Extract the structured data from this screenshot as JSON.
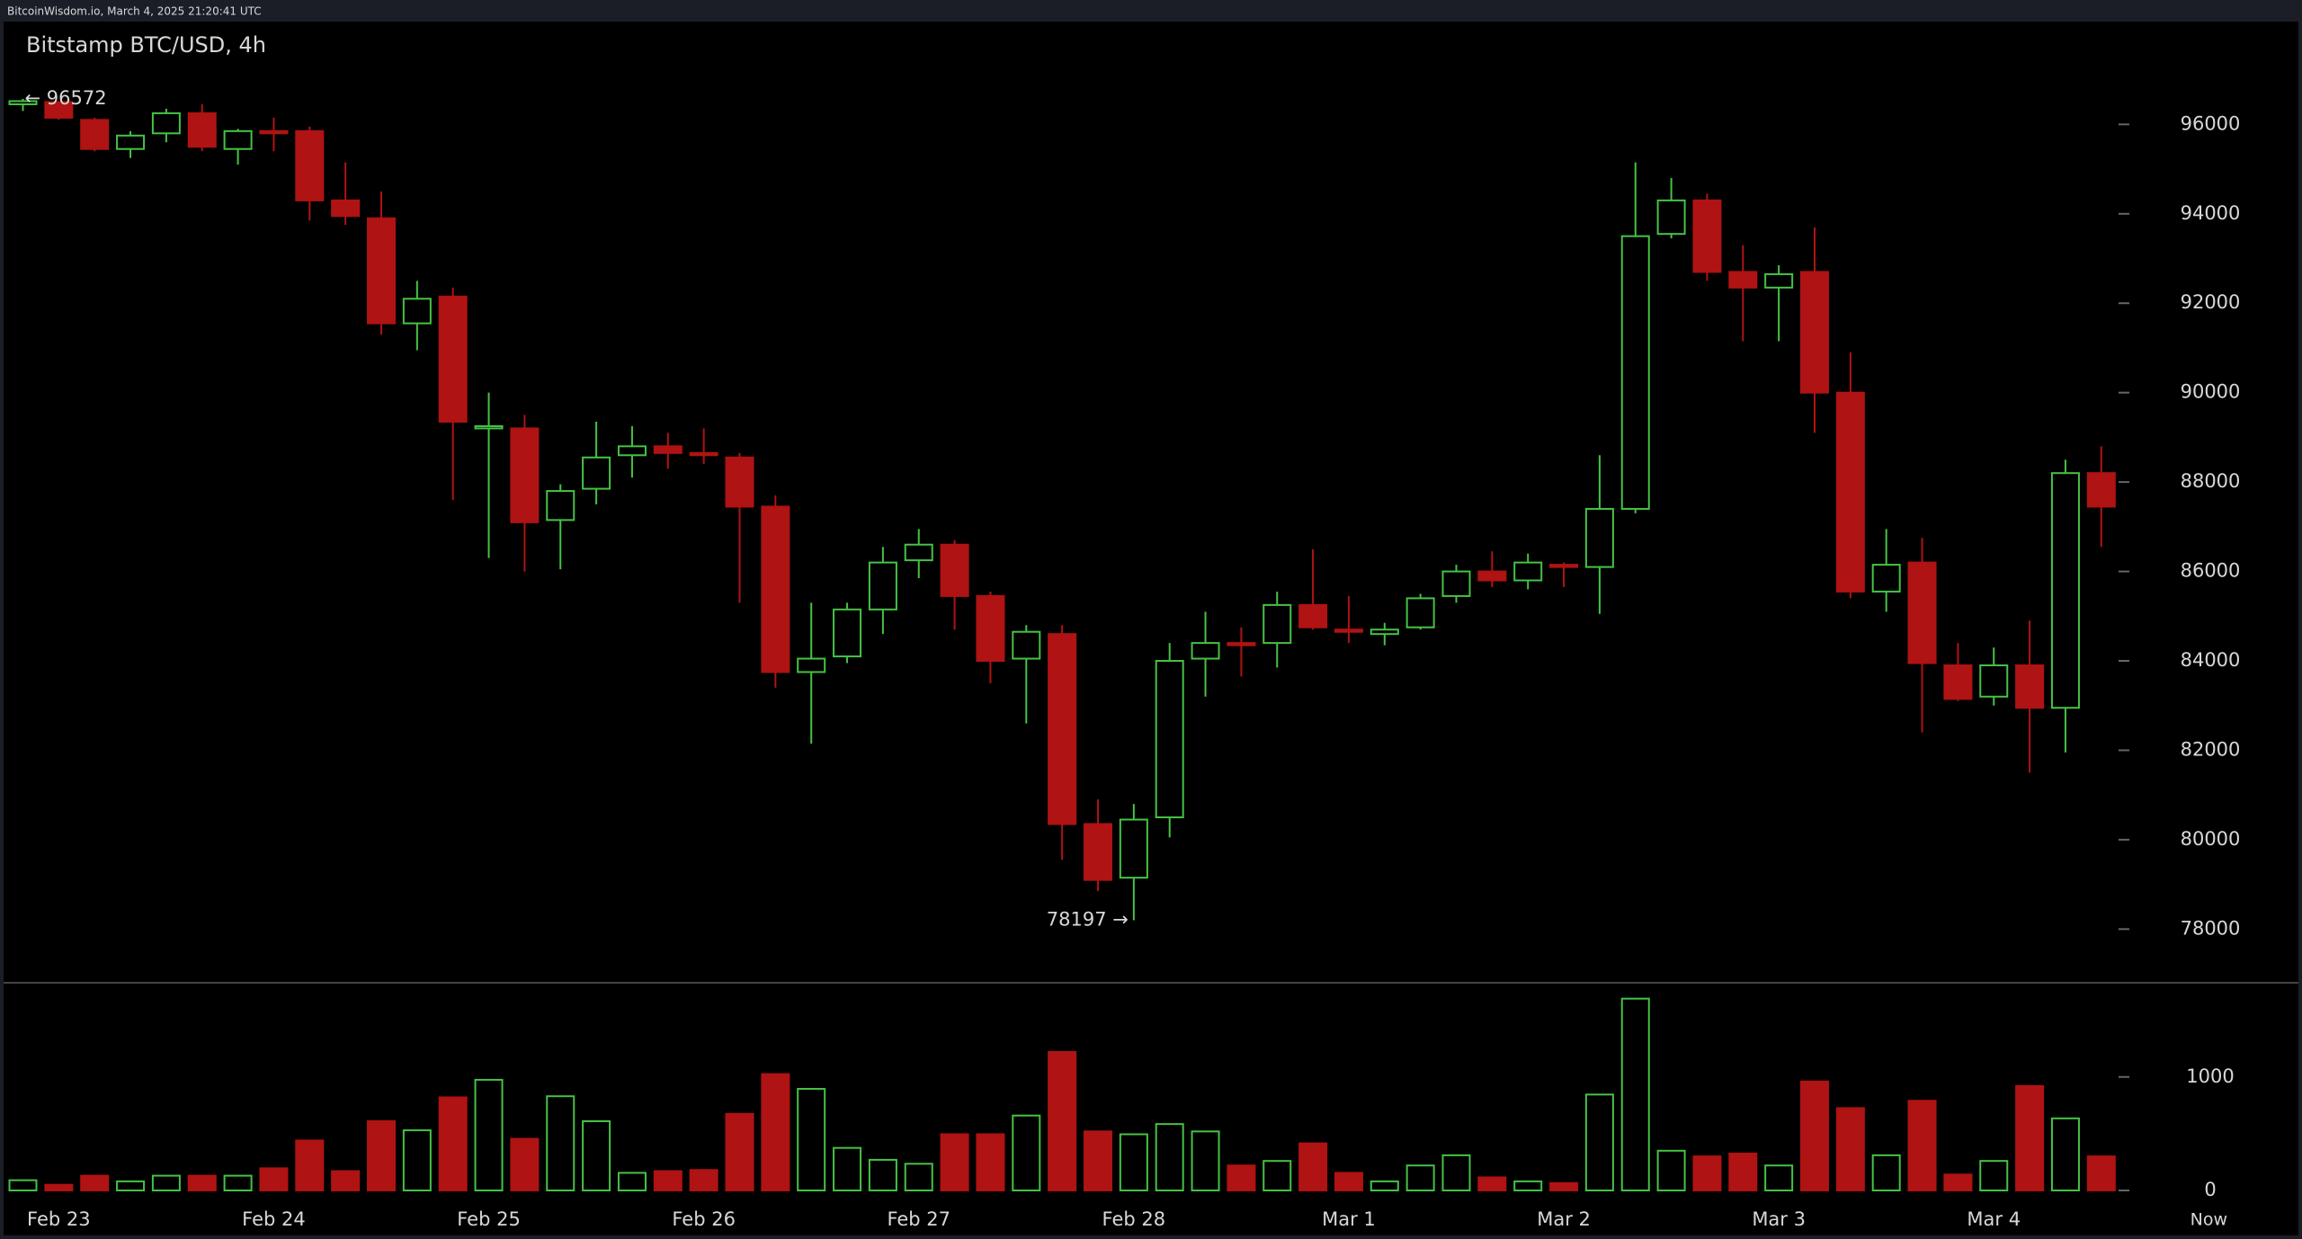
{
  "header": {
    "text": "BitcoinWisdom.io, March 4, 2025 21:20:41 UTC"
  },
  "chart_data": {
    "type": "candlestick",
    "title": "Bitstamp BTC/USD, 4h",
    "categories": [
      null,
      "Feb 23",
      null,
      null,
      null,
      null,
      null,
      "Feb 24",
      null,
      null,
      null,
      null,
      null,
      "Feb 25",
      null,
      null,
      null,
      null,
      null,
      "Feb 26",
      null,
      null,
      null,
      null,
      null,
      "Feb 27",
      null,
      null,
      null,
      null,
      null,
      "Feb 28",
      null,
      null,
      null,
      null,
      null,
      "Mar 1",
      null,
      null,
      null,
      null,
      null,
      "Mar 2",
      null,
      null,
      null,
      null,
      null,
      "Mar 3",
      null,
      null,
      null,
      null,
      null,
      "Mar 4",
      null,
      null,
      null
    ],
    "x_end_label": "Now",
    "open": [
      96450,
      96500,
      96100,
      95450,
      95800,
      96250,
      95450,
      95850,
      95850,
      94300,
      93900,
      91550,
      92150,
      89200,
      89200,
      87150,
      87850,
      88600,
      88800,
      88650,
      88550,
      87450,
      83750,
      84100,
      85150,
      86250,
      86600,
      85450,
      84050,
      84600,
      80350,
      79150,
      80500,
      84050,
      84400,
      84400,
      85250,
      84700,
      84600,
      84750,
      85450,
      86000,
      85800,
      86150,
      86100,
      87400,
      93550,
      94300,
      92700,
      92350,
      92700,
      90000,
      85550,
      86200,
      83900,
      83200,
      83900,
      82950,
      88200
    ],
    "high": [
      96572,
      96500,
      96150,
      95850,
      96350,
      96450,
      95900,
      96150,
      95950,
      95150,
      94500,
      92500,
      92350,
      90000,
      89500,
      87950,
      89350,
      89250,
      89100,
      89200,
      88650,
      87700,
      85300,
      85300,
      86550,
      86950,
      86700,
      85550,
      84800,
      84800,
      80900,
      80800,
      84400,
      85100,
      84750,
      85550,
      86500,
      85450,
      84850,
      85500,
      86150,
      86450,
      86400,
      86200,
      88600,
      95150,
      94800,
      94450,
      93300,
      92850,
      93700,
      90900,
      86950,
      86750,
      84400,
      84300,
      84900,
      88500,
      88800
    ],
    "low": [
      96300,
      96100,
      95400,
      95250,
      95600,
      95400,
      95100,
      95400,
      93850,
      93750,
      91300,
      90950,
      87600,
      86300,
      86000,
      86050,
      87500,
      88100,
      88300,
      88400,
      85300,
      83400,
      82150,
      83950,
      84600,
      85850,
      84700,
      83500,
      82600,
      79550,
      78850,
      78197,
      80050,
      83200,
      83650,
      83850,
      84700,
      84400,
      84350,
      84700,
      85300,
      85650,
      85600,
      85650,
      85050,
      87300,
      93450,
      92500,
      91150,
      91150,
      89100,
      85400,
      85100,
      82400,
      83100,
      83000,
      81500,
      81950,
      86550
    ],
    "close": [
      96520,
      96150,
      95450,
      95750,
      96250,
      95500,
      95850,
      95800,
      94300,
      93950,
      91550,
      92100,
      89350,
      89250,
      87100,
      87800,
      88550,
      88800,
      88650,
      88600,
      87450,
      83750,
      84050,
      85150,
      86200,
      86600,
      85450,
      84000,
      84650,
      80350,
      79100,
      80450,
      84000,
      84400,
      84350,
      85250,
      84750,
      84650,
      84700,
      85400,
      86000,
      85800,
      86200,
      86100,
      87400,
      93500,
      94300,
      92700,
      92350,
      92650,
      90000,
      85550,
      86150,
      83950,
      83150,
      83900,
      82950,
      88200,
      87450
    ],
    "volume": [
      90,
      50,
      130,
      80,
      130,
      130,
      130,
      195,
      440,
      170,
      610,
      530,
      820,
      975,
      455,
      830,
      610,
      155,
      170,
      180,
      675,
      1025,
      895,
      375,
      270,
      235,
      495,
      495,
      660,
      1220,
      520,
      495,
      585,
      520,
      220,
      260,
      415,
      155,
      80,
      220,
      310,
      115,
      80,
      65,
      845,
      1690,
      350,
      300,
      325,
      220,
      960,
      725,
      310,
      790,
      140,
      260,
      920,
      635,
      300
    ],
    "up_color": "#45c245",
    "down_color": "#b01313",
    "ylim": [
      76800,
      98300
    ],
    "yticks": [
      78000,
      80000,
      82000,
      84000,
      86000,
      88000,
      90000,
      92000,
      94000,
      96000
    ],
    "volume_ylim": [
      0,
      1830
    ],
    "volume_yticks": [
      0,
      1000
    ],
    "high_label": "← 96572",
    "low_label": "78197 →"
  }
}
